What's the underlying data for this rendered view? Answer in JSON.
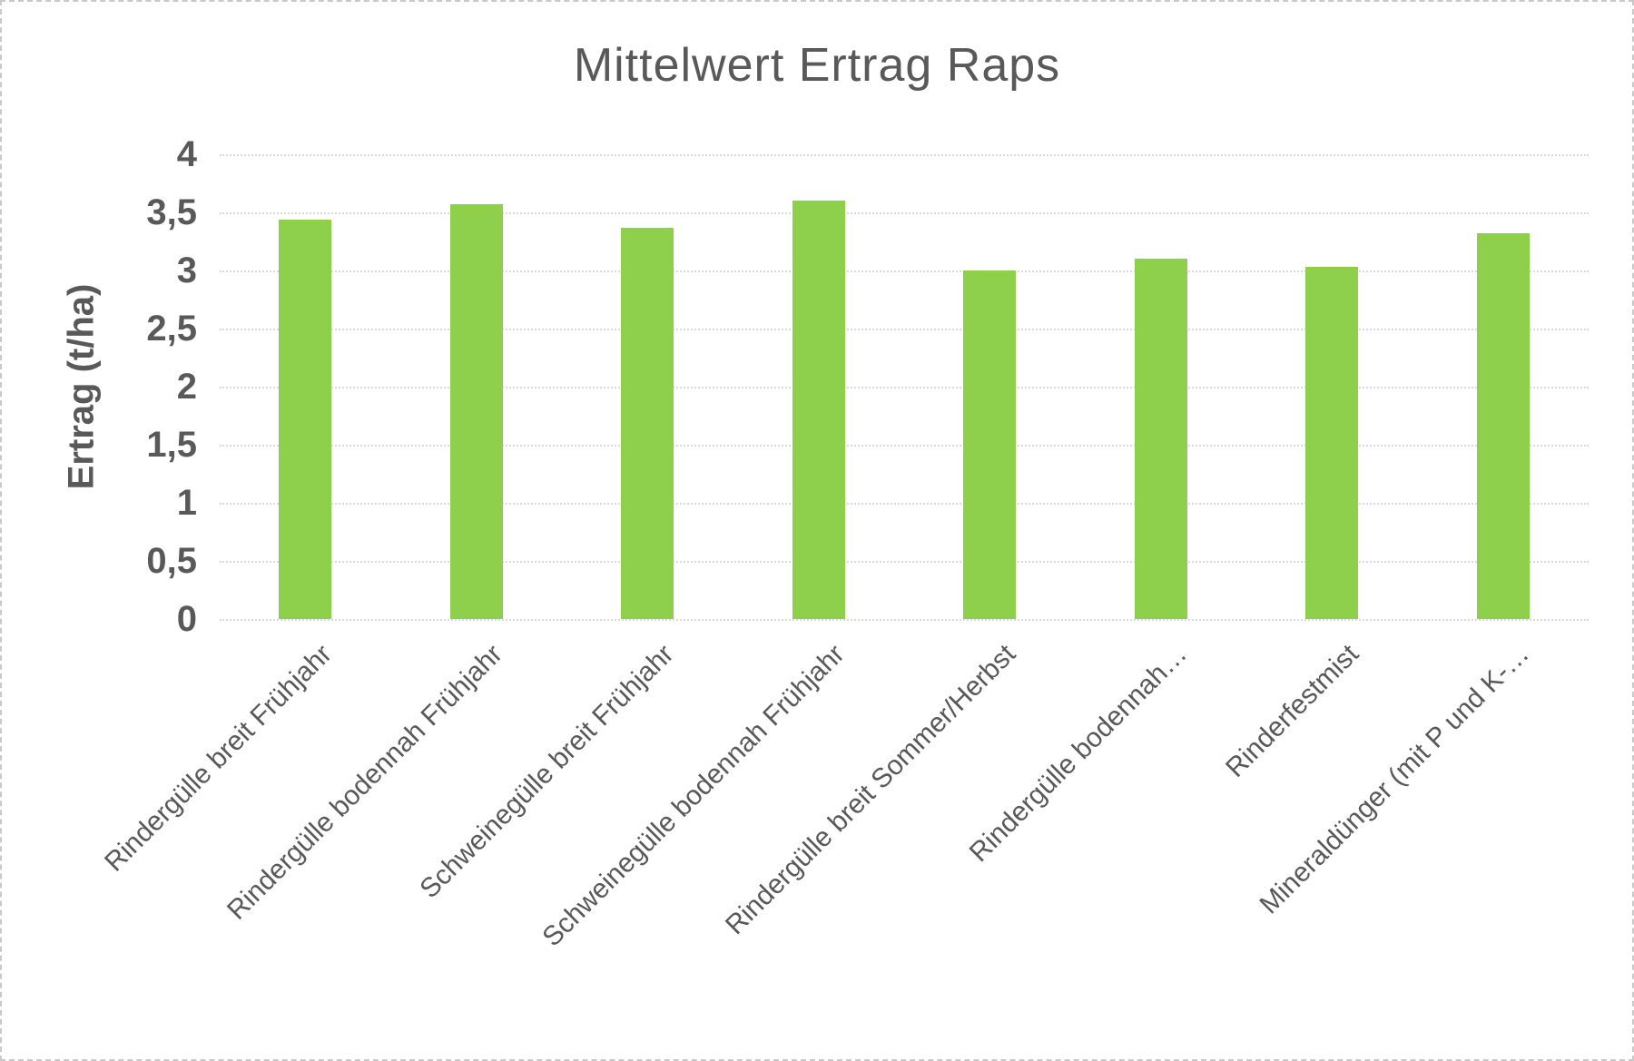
{
  "chart_data": {
    "type": "bar",
    "title": "Mittelwert Ertrag Raps",
    "ylabel": "Ertrag (t/ha)",
    "xlabel": "",
    "categories": [
      "Rindergülle breit Frühjahr",
      "Rindergülle bodennah Frühjahr",
      "Schweinegülle breit Frühjahr",
      "Schweinegülle bodennah Frühjahr",
      "Rindergülle breit Sommer/Herbst",
      "Rindergülle bodennah…",
      "Rinderfestmist",
      "Mineraldünger (mit P und K-…"
    ],
    "values": [
      3.44,
      3.57,
      3.37,
      3.6,
      3.0,
      3.1,
      3.03,
      3.32
    ],
    "ylim": [
      0,
      4
    ],
    "ytick_step": 0.5,
    "ytick_labels": [
      "0",
      "0,5",
      "1",
      "1,5",
      "2",
      "2,5",
      "3",
      "3,5",
      "4"
    ],
    "grid": true,
    "legend": "none",
    "x_label_rotation_deg": 45,
    "colors": {
      "bar": "#8ed04c",
      "text": "#595959",
      "gridline": "#d9d9d9",
      "frame_border": "#c9c9c9",
      "background": "#ffffff"
    }
  }
}
